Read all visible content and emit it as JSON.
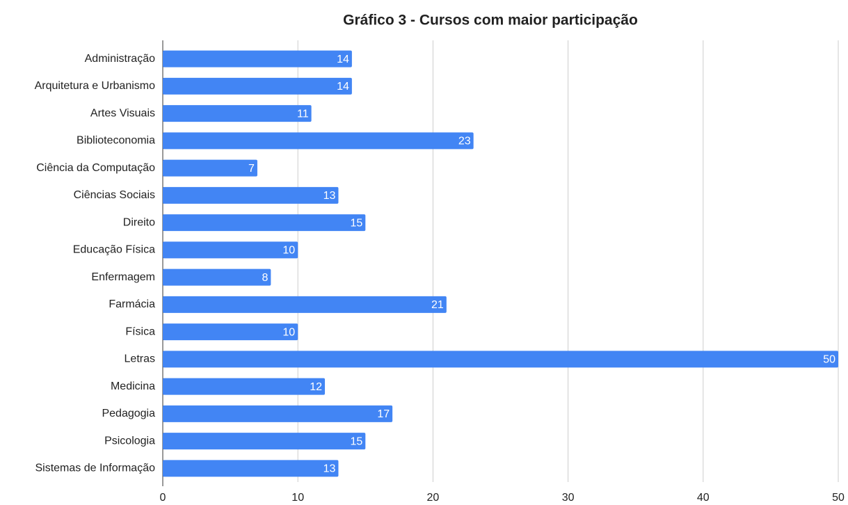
{
  "chart_data": {
    "type": "barh",
    "title": "Gráfico 3 - Cursos com maior participação",
    "categories": [
      "Administração",
      "Arquitetura e Urbanismo",
      "Artes Visuais",
      "Biblioteconomia",
      "Ciência da Computação",
      "Ciências Sociais",
      "Direito",
      "Educação Física",
      "Enfermagem",
      "Farmácia",
      "Física",
      "Letras",
      "Medicina",
      "Pedagogia",
      "Psicologia",
      "Sistemas de Informação"
    ],
    "values": [
      14,
      14,
      11,
      23,
      7,
      13,
      15,
      10,
      8,
      21,
      10,
      50,
      12,
      17,
      15,
      13
    ],
    "color": "#4285f4",
    "xlim": [
      0,
      50
    ],
    "xticks": [
      0,
      10,
      20,
      30,
      40,
      50
    ],
    "grid": true
  }
}
